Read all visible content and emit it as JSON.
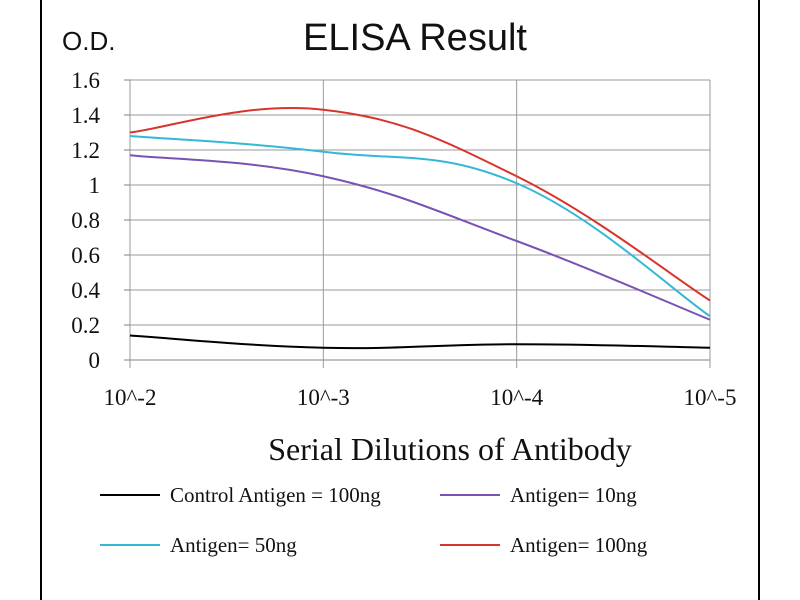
{
  "chart_data": {
    "type": "line",
    "title": "ELISA Result",
    "ylabel": "O.D.",
    "xlabel": "Serial Dilutions  of Antibody",
    "categories": [
      "10^-2",
      "10^-3",
      "10^-4",
      "10^-5"
    ],
    "ylim": [
      0,
      1.6
    ],
    "yticks": [
      "0",
      "0.2",
      "0.4",
      "0.6",
      "0.8",
      "1",
      "1.2",
      "1.4",
      "1.6"
    ],
    "grid": true,
    "legend_position": "bottom",
    "series": [
      {
        "name": "Control Antigen = 100ng",
        "color": "#000000",
        "values": [
          0.14,
          0.07,
          0.09,
          0.07
        ]
      },
      {
        "name": "Antigen= 10ng",
        "color": "#7a52b3",
        "values": [
          1.17,
          1.05,
          0.68,
          0.23
        ]
      },
      {
        "name": "Antigen= 50ng",
        "color": "#35b8d6",
        "values": [
          1.28,
          1.19,
          1.01,
          0.25
        ]
      },
      {
        "name": "Antigen= 100ng",
        "color": "#d9342b",
        "values": [
          1.3,
          1.43,
          1.05,
          0.34
        ]
      }
    ]
  }
}
